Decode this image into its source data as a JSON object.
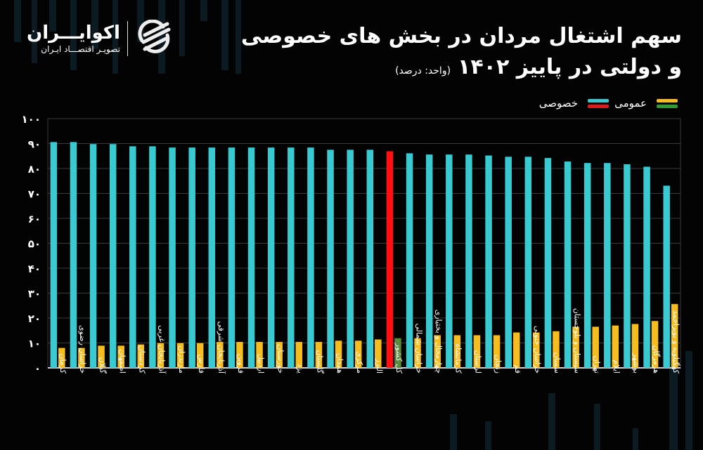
{
  "header": {
    "title_line1": "سهم اشتغال مردان در بخش های خصوصی",
    "title_line2": "و دولتی در پاییز ۱۴۰۲",
    "unit": "(واحد: درصد)"
  },
  "logo": {
    "name": "اکوایـــران",
    "tagline": "تصویـر اقتصـــاد ایـران"
  },
  "legend": {
    "items": [
      {
        "label": "عمومی",
        "colors": [
          "#f5bd1f",
          "#2e9c2e"
        ]
      },
      {
        "label": "خصوصی",
        "colors": [
          "#39c9d1",
          "#e0191b"
        ]
      }
    ]
  },
  "colors": {
    "private": "#39c9d1",
    "private_total": "#ff1010",
    "public": "#f5bd1f",
    "public_total": "#5b8a3a",
    "grid": "#3a3a3a",
    "background": "#030303"
  },
  "chart_data": {
    "type": "bar",
    "title": "سهم اشتغال مردان در بخش های خصوصی و دولتی در پاییز ۱۴۰۲",
    "ylabel": "درصد",
    "ylim": [
      0,
      100
    ],
    "yticks": [
      "۰",
      "۱۰",
      "۲۰",
      "۳۰",
      "۴۰",
      "۵۰",
      "۶۰",
      "۷۰",
      "۸۰",
      "۹۰",
      "۱۰۰"
    ],
    "grid": true,
    "legend_position": "top-right",
    "categories": [
      "کرمان",
      "خراسان رضوی",
      "گیلان",
      "اصفهان",
      "کردستان",
      "آذربایجان غربی",
      "مازندران",
      "فارس",
      "آذربایجان شرقی",
      "قزوین",
      "اردبیل",
      "خوزستان",
      "یزد",
      "گلستان",
      "همدان",
      "مرکزی",
      "البرز",
      "کل کشور",
      "خراسان شمالی",
      "چهارمحال و بختیاری",
      "کرمانشاه",
      "لرستان",
      "زنجان",
      "قم",
      "خراسان جنوبی",
      "سمنان",
      "سیستان و بلوچستان",
      "تهران",
      "ایلام",
      "بوشهر",
      "هرمزگان",
      "کهگیلویه و بویراحمد"
    ],
    "highlight_category": "کل کشور",
    "series": [
      {
        "name": "خصوصی",
        "values": [
          90.6,
          90.6,
          89.8,
          89.8,
          88.9,
          88.9,
          88.4,
          88.4,
          88.4,
          88.4,
          88.4,
          88.4,
          88.4,
          88.4,
          87.5,
          87.5,
          87.5,
          86.9,
          86.1,
          85.6,
          85.6,
          85.6,
          85.2,
          84.7,
          84.7,
          84.2,
          82.8,
          82.2,
          82.2,
          81.7,
          80.7,
          73.1
        ]
      },
      {
        "name": "عمومی",
        "values": [
          8.0,
          8.0,
          8.9,
          8.9,
          9.4,
          9.9,
          9.9,
          9.9,
          10.4,
          10.4,
          10.4,
          10.4,
          10.4,
          10.4,
          10.9,
          10.9,
          11.4,
          11.9,
          11.9,
          13.1,
          13.1,
          13.1,
          13.1,
          14.2,
          14.2,
          14.7,
          16.5,
          16.5,
          17.0,
          17.6,
          18.8,
          25.6
        ]
      }
    ]
  }
}
